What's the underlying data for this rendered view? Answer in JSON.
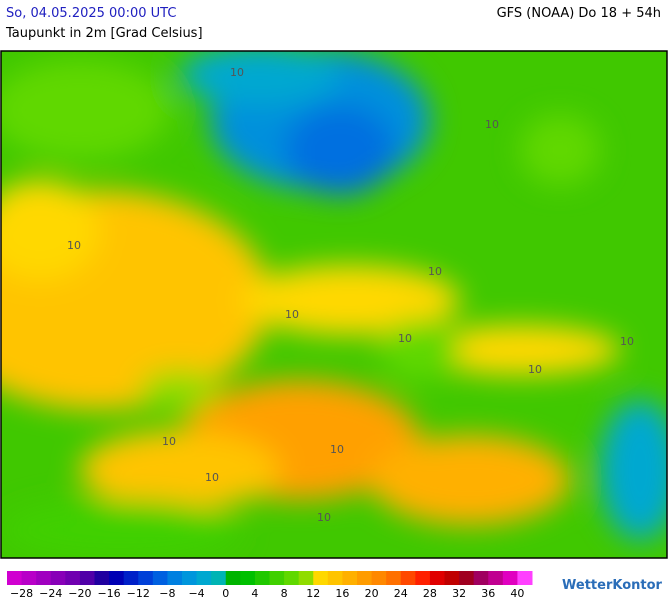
{
  "header": {
    "datetime": "So, 04.05.2025 00:00 UTC",
    "model": "GFS (NOAA) Do 18 + 54h",
    "subtitle": "Taupunkt in 2m [Grad Celsius]"
  },
  "map": {
    "contour_label": "10"
  },
  "legend": {
    "min": -30,
    "max": 42,
    "colors": [
      "#d000d0",
      "#b800c8",
      "#a000c0",
      "#8800b8",
      "#7000b0",
      "#5000a8",
      "#2000a0",
      "#0000b4",
      "#0020c8",
      "#0040d8",
      "#0060e0",
      "#0080e0",
      "#0096dc",
      "#00a8d0",
      "#00b4b4",
      "#00b400",
      "#00c000",
      "#20c800",
      "#40d000",
      "#60d800",
      "#90dc00",
      "#ffd800",
      "#ffc400",
      "#ffb000",
      "#ff9c00",
      "#ff8800",
      "#ff7000",
      "#ff4800",
      "#ff2000",
      "#e00000",
      "#c00000",
      "#a00020",
      "#a00060",
      "#c00090",
      "#e000c0",
      "#ff40ff"
    ],
    "ticks": [
      {
        "value": -28,
        "label": "−28"
      },
      {
        "value": -24,
        "label": "−24"
      },
      {
        "value": -20,
        "label": "−20"
      },
      {
        "value": -16,
        "label": "−16"
      },
      {
        "value": -12,
        "label": "−12"
      },
      {
        "value": -8,
        "label": "−8"
      },
      {
        "value": -4,
        "label": "−4"
      },
      0,
      4,
      8,
      12,
      16,
      20,
      24,
      28,
      32,
      36,
      40
    ]
  },
  "brand": "WetterKontor"
}
